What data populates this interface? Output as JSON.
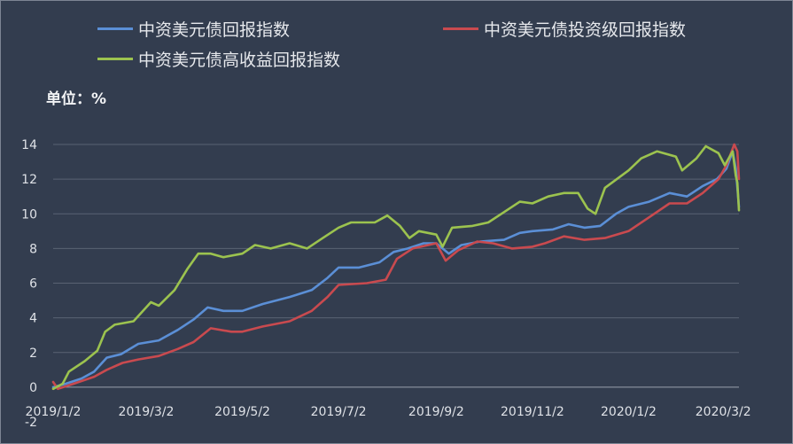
{
  "chart_data": {
    "type": "line",
    "unit_label": "单位：%",
    "legend_placement": "top",
    "grid": true,
    "ylim": [
      -2,
      14
    ],
    "yticks": [
      -2,
      0,
      2,
      4,
      6,
      8,
      10,
      12,
      14
    ],
    "xlim": [
      "2019-01-02",
      "2020-03-12"
    ],
    "xticks": [
      {
        "date": "2019-01-02",
        "label": "2019/1/2"
      },
      {
        "date": "2019-03-02",
        "label": "2019/3/2"
      },
      {
        "date": "2019-05-02",
        "label": "2019/5/2"
      },
      {
        "date": "2019-07-02",
        "label": "2019/7/2"
      },
      {
        "date": "2019-09-02",
        "label": "2019/9/2"
      },
      {
        "date": "2019-11-02",
        "label": "2019/11/2"
      },
      {
        "date": "2020-01-02",
        "label": "2020/1/2"
      },
      {
        "date": "2020-03-02",
        "label": "2020/3/2"
      }
    ],
    "series": [
      {
        "name": "中资美元债回报指数",
        "color": "#5b8fd6",
        "points": [
          [
            "2019-01-02",
            0.0
          ],
          [
            "2019-01-10",
            0.2
          ],
          [
            "2019-01-20",
            0.5
          ],
          [
            "2019-01-28",
            0.9
          ],
          [
            "2019-02-05",
            1.7
          ],
          [
            "2019-02-14",
            1.9
          ],
          [
            "2019-02-25",
            2.5
          ],
          [
            "2019-03-10",
            2.7
          ],
          [
            "2019-03-22",
            3.3
          ],
          [
            "2019-04-01",
            3.9
          ],
          [
            "2019-04-10",
            4.6
          ],
          [
            "2019-04-20",
            4.4
          ],
          [
            "2019-05-02",
            4.4
          ],
          [
            "2019-05-15",
            4.8
          ],
          [
            "2019-06-01",
            5.2
          ],
          [
            "2019-06-15",
            5.6
          ],
          [
            "2019-06-25",
            6.3
          ],
          [
            "2019-07-02",
            6.9
          ],
          [
            "2019-07-15",
            6.9
          ],
          [
            "2019-07-28",
            7.2
          ],
          [
            "2019-08-06",
            7.8
          ],
          [
            "2019-08-15",
            8.0
          ],
          [
            "2019-08-25",
            8.3
          ],
          [
            "2019-09-02",
            8.3
          ],
          [
            "2019-09-10",
            7.7
          ],
          [
            "2019-09-18",
            8.2
          ],
          [
            "2019-09-30",
            8.4
          ],
          [
            "2019-10-15",
            8.5
          ],
          [
            "2019-10-25",
            8.9
          ],
          [
            "2019-11-02",
            9.0
          ],
          [
            "2019-11-15",
            9.1
          ],
          [
            "2019-11-25",
            9.4
          ],
          [
            "2019-12-05",
            9.2
          ],
          [
            "2019-12-15",
            9.3
          ],
          [
            "2019-12-25",
            10.0
          ],
          [
            "2020-01-02",
            10.4
          ],
          [
            "2020-01-15",
            10.7
          ],
          [
            "2020-01-28",
            11.2
          ],
          [
            "2020-02-08",
            11.0
          ],
          [
            "2020-02-18",
            11.6
          ],
          [
            "2020-02-27",
            12.0
          ],
          [
            "2020-03-04",
            12.6
          ],
          [
            "2020-03-08",
            13.6
          ],
          [
            "2020-03-10",
            12.6
          ],
          [
            "2020-03-12",
            10.4
          ]
        ]
      },
      {
        "name": "中资美元债投资级回报指数",
        "color": "#c94a4f",
        "points": [
          [
            "2019-01-02",
            0.3
          ],
          [
            "2019-01-05",
            -0.1
          ],
          [
            "2019-01-15",
            0.2
          ],
          [
            "2019-01-28",
            0.6
          ],
          [
            "2019-02-05",
            1.0
          ],
          [
            "2019-02-15",
            1.4
          ],
          [
            "2019-02-25",
            1.6
          ],
          [
            "2019-03-10",
            1.8
          ],
          [
            "2019-03-22",
            2.2
          ],
          [
            "2019-04-01",
            2.6
          ],
          [
            "2019-04-12",
            3.4
          ],
          [
            "2019-04-25",
            3.2
          ],
          [
            "2019-05-02",
            3.2
          ],
          [
            "2019-05-15",
            3.5
          ],
          [
            "2019-06-01",
            3.8
          ],
          [
            "2019-06-15",
            4.4
          ],
          [
            "2019-06-25",
            5.2
          ],
          [
            "2019-07-02",
            5.9
          ],
          [
            "2019-07-20",
            6.0
          ],
          [
            "2019-08-01",
            6.2
          ],
          [
            "2019-08-08",
            7.4
          ],
          [
            "2019-08-18",
            8.0
          ],
          [
            "2019-09-02",
            8.3
          ],
          [
            "2019-09-08",
            7.3
          ],
          [
            "2019-09-16",
            7.9
          ],
          [
            "2019-09-28",
            8.4
          ],
          [
            "2019-10-08",
            8.3
          ],
          [
            "2019-10-20",
            8.0
          ],
          [
            "2019-11-02",
            8.1
          ],
          [
            "2019-11-10",
            8.3
          ],
          [
            "2019-11-22",
            8.7
          ],
          [
            "2019-12-05",
            8.5
          ],
          [
            "2019-12-18",
            8.6
          ],
          [
            "2020-01-02",
            9.0
          ],
          [
            "2020-01-15",
            9.8
          ],
          [
            "2020-01-28",
            10.6
          ],
          [
            "2020-02-08",
            10.6
          ],
          [
            "2020-02-18",
            11.2
          ],
          [
            "2020-02-28",
            12.0
          ],
          [
            "2020-03-04",
            12.8
          ],
          [
            "2020-03-09",
            14.0
          ],
          [
            "2020-03-11",
            13.6
          ],
          [
            "2020-03-12",
            12.0
          ]
        ]
      },
      {
        "name": "中资美元债高收益回报指数",
        "color": "#9cc34f",
        "points": [
          [
            "2019-01-02",
            -0.1
          ],
          [
            "2019-01-08",
            0.2
          ],
          [
            "2019-01-12",
            0.9
          ],
          [
            "2019-01-22",
            1.5
          ],
          [
            "2019-01-30",
            2.1
          ],
          [
            "2019-02-04",
            3.2
          ],
          [
            "2019-02-10",
            3.6
          ],
          [
            "2019-02-22",
            3.8
          ],
          [
            "2019-03-05",
            4.9
          ],
          [
            "2019-03-10",
            4.7
          ],
          [
            "2019-03-20",
            5.6
          ],
          [
            "2019-03-28",
            6.8
          ],
          [
            "2019-04-04",
            7.7
          ],
          [
            "2019-04-12",
            7.7
          ],
          [
            "2019-04-20",
            7.5
          ],
          [
            "2019-05-02",
            7.7
          ],
          [
            "2019-05-10",
            8.2
          ],
          [
            "2019-05-20",
            8.0
          ],
          [
            "2019-06-01",
            8.3
          ],
          [
            "2019-06-12",
            8.0
          ],
          [
            "2019-06-22",
            8.6
          ],
          [
            "2019-07-02",
            9.2
          ],
          [
            "2019-07-10",
            9.5
          ],
          [
            "2019-07-25",
            9.5
          ],
          [
            "2019-08-02",
            9.9
          ],
          [
            "2019-08-10",
            9.3
          ],
          [
            "2019-08-16",
            8.6
          ],
          [
            "2019-08-22",
            9.0
          ],
          [
            "2019-09-02",
            8.8
          ],
          [
            "2019-09-06",
            8.1
          ],
          [
            "2019-09-12",
            9.2
          ],
          [
            "2019-09-25",
            9.3
          ],
          [
            "2019-10-05",
            9.5
          ],
          [
            "2019-10-15",
            10.1
          ],
          [
            "2019-10-25",
            10.7
          ],
          [
            "2019-11-02",
            10.6
          ],
          [
            "2019-11-12",
            11.0
          ],
          [
            "2019-11-22",
            11.2
          ],
          [
            "2019-12-01",
            11.2
          ],
          [
            "2019-12-07",
            10.3
          ],
          [
            "2019-12-12",
            10.0
          ],
          [
            "2019-12-18",
            11.5
          ],
          [
            "2020-01-02",
            12.5
          ],
          [
            "2020-01-10",
            13.2
          ],
          [
            "2020-01-20",
            13.6
          ],
          [
            "2020-02-01",
            13.3
          ],
          [
            "2020-02-05",
            12.5
          ],
          [
            "2020-02-14",
            13.2
          ],
          [
            "2020-02-20",
            13.9
          ],
          [
            "2020-02-28",
            13.5
          ],
          [
            "2020-03-03",
            12.8
          ],
          [
            "2020-03-08",
            13.6
          ],
          [
            "2020-03-10",
            12.2
          ],
          [
            "2020-03-11",
            11.8
          ],
          [
            "2020-03-12",
            10.2
          ]
        ]
      }
    ]
  }
}
